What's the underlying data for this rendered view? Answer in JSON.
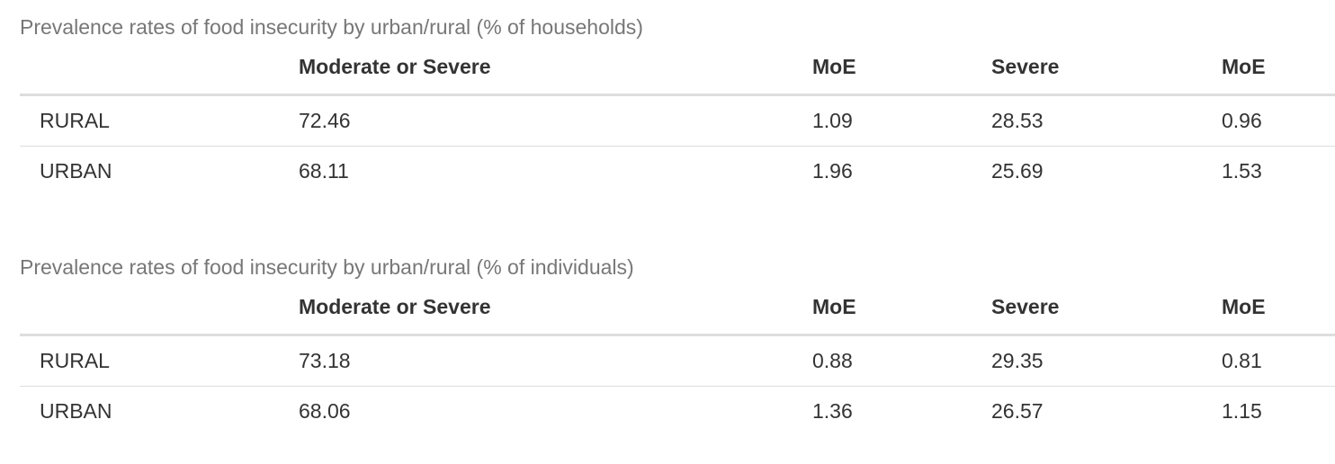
{
  "tables": [
    {
      "caption": "Prevalence rates of food insecurity by urban/rural (% of households)",
      "headers": [
        "",
        "Moderate or Severe",
        "MoE",
        "Severe",
        "MoE"
      ],
      "rows": [
        [
          "RURAL",
          "72.46",
          "1.09",
          "28.53",
          "0.96"
        ],
        [
          "URBAN",
          "68.11",
          "1.96",
          "25.69",
          "1.53"
        ]
      ]
    },
    {
      "caption": "Prevalence rates of food insecurity by urban/rural (% of individuals)",
      "headers": [
        "",
        "Moderate or Severe",
        "MoE",
        "Severe",
        "MoE"
      ],
      "rows": [
        [
          "RURAL",
          "73.18",
          "0.88",
          "29.35",
          "0.81"
        ],
        [
          "URBAN",
          "68.06",
          "1.36",
          "26.57",
          "1.15"
        ]
      ]
    }
  ]
}
